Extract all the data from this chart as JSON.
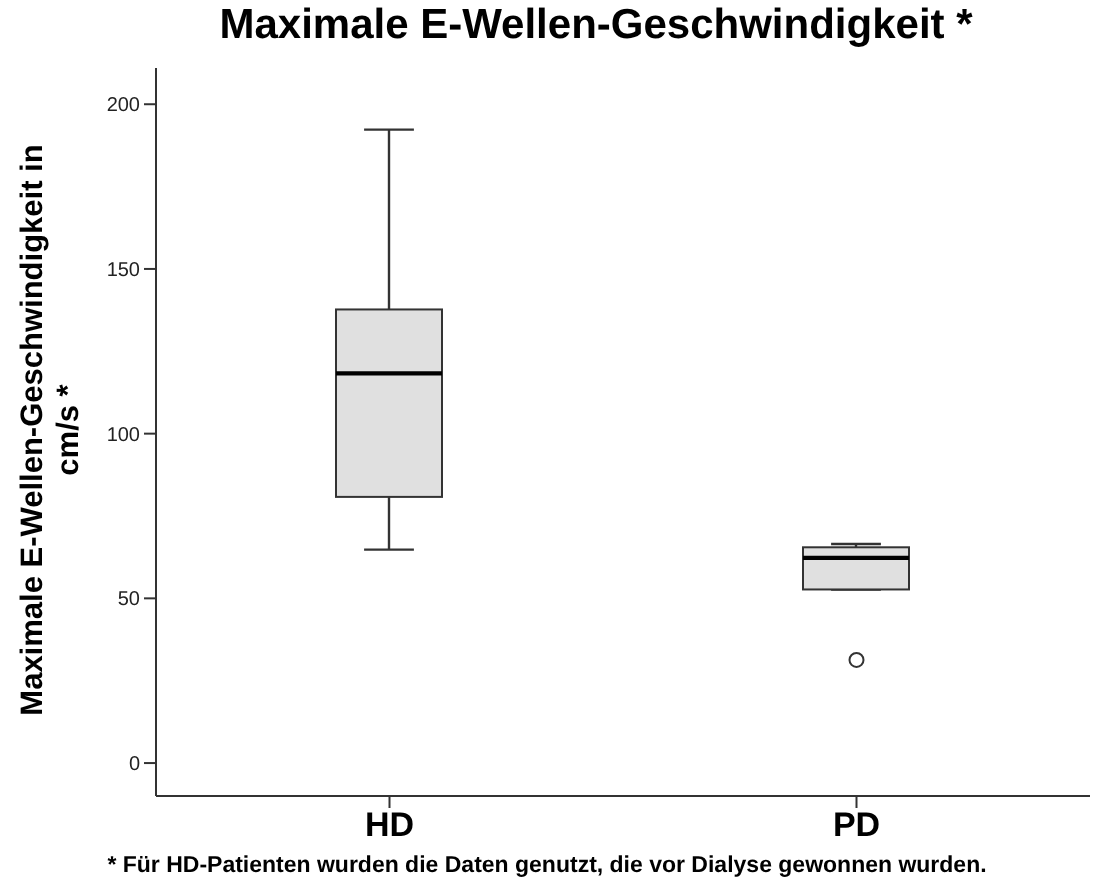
{
  "chart_data": {
    "type": "box",
    "title": "Maximale E-Wellen-Geschwindigkeit *",
    "ylabel": "Maximale E-Wellen-Geschwindigkeit in cm/s *",
    "categories": [
      "HD",
      "PD"
    ],
    "color": "#e0e0e0",
    "boxes": [
      {
        "low": 64.8,
        "q1": 80.8,
        "median": 118.3,
        "q3": 137.7,
        "high": 192.3
      },
      {
        "low": 52.7,
        "q1": 52.7,
        "median": 62.3,
        "q3": 65.5,
        "high": 66.5,
        "outliers": [
          31.3
        ]
      }
    ],
    "ylim": [
      -10,
      211
    ],
    "yticks": [
      0,
      50,
      100,
      150,
      200
    ],
    "grid": false,
    "legend": false,
    "annotations": [
      "* Für HD-Patienten wurden die Daten genutzt, die vor Dialyse gewonnen wurden."
    ]
  }
}
